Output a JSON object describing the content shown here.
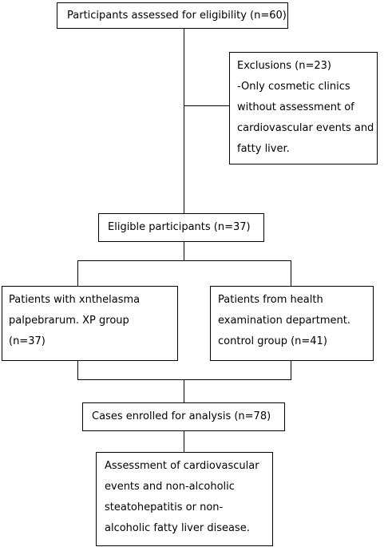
{
  "boxes": {
    "assessed": {
      "lines": [
        "Participants assessed for eligibility (n=60)"
      ]
    },
    "exclusions": {
      "lines": [
        "Exclusions (n=23)",
        "-Only cosmetic clinics",
        "without assessment of",
        "cardiovascular events and",
        "fatty liver."
      ]
    },
    "eligible": {
      "lines": [
        "Eligible participants (n=37)"
      ]
    },
    "xp_group": {
      "lines": [
        "Patients with xnthelasma",
        "palpebrarum. XP group",
        "(n=37)"
      ]
    },
    "control_group": {
      "lines": [
        "Patients from health",
        "examination department.",
        "control group (n=41)"
      ]
    },
    "enrolled": {
      "lines": [
        "Cases enrolled for analysis (n=78)"
      ]
    },
    "outcomes": {
      "lines": [
        "Assessment of cardiovascular",
        "events and non-alcoholic",
        "steatohepatitis or non-",
        "alcoholic fatty liver disease."
      ]
    }
  }
}
